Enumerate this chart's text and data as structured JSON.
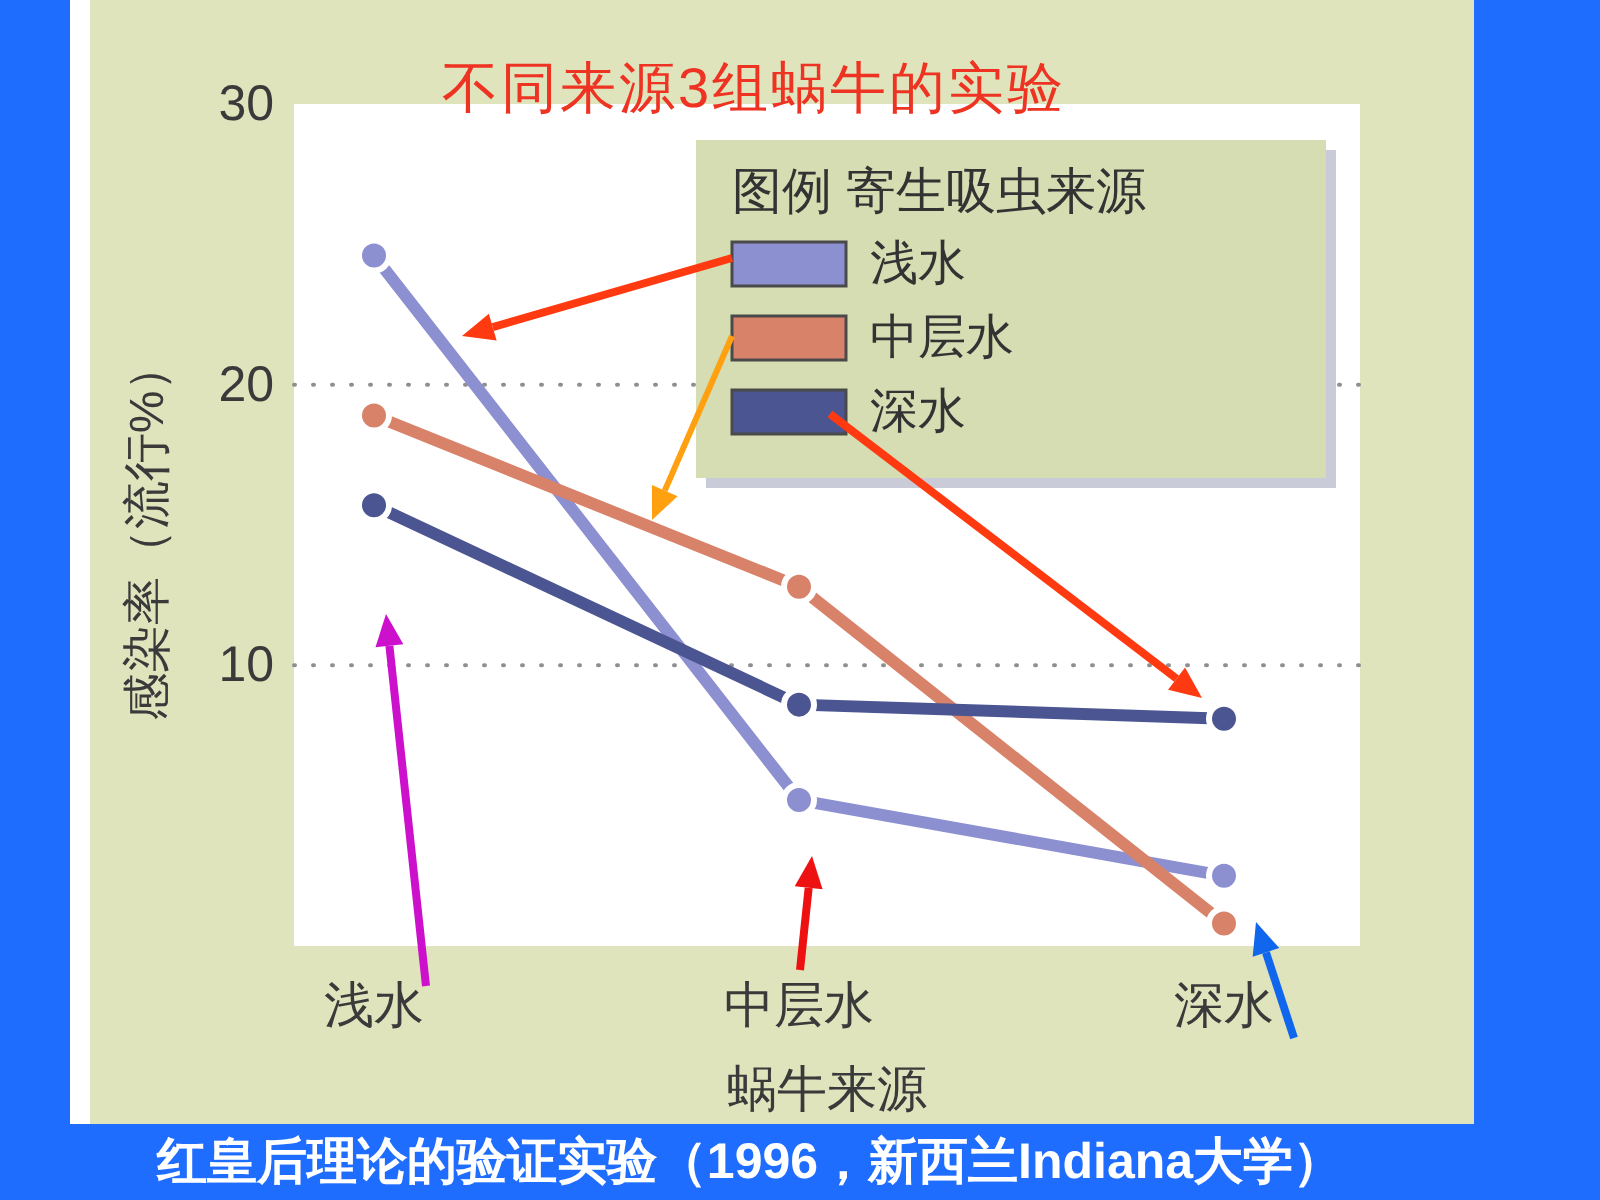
{
  "chart_data": {
    "type": "line",
    "title": "不同来源3组蜗牛的实验",
    "xlabel": "蜗牛来源",
    "ylabel": "感染率（流行%）",
    "legend_title": "图例 寄生吸虫来源",
    "annotations": [
      "红皇后理论的验证实验（1996，新西兰Indiana大学）"
    ],
    "categories": [
      "浅水",
      "中层水",
      "深水"
    ],
    "series": [
      {
        "name": "浅水",
        "color": "#8c8fd0",
        "values": [
          24.6,
          5.2,
          2.5
        ]
      },
      {
        "name": "中层水",
        "color": "#d9826a",
        "values": [
          18.9,
          12.8,
          0.8
        ]
      },
      {
        "name": "深水",
        "color": "#4b5591",
        "values": [
          15.7,
          8.6,
          8.1
        ]
      }
    ],
    "ylim": [
      0,
      30
    ],
    "yticks": [
      10,
      20,
      30
    ],
    "grid": "y",
    "legend": "top right",
    "marker": "circle",
    "line_style": "solid"
  }
}
